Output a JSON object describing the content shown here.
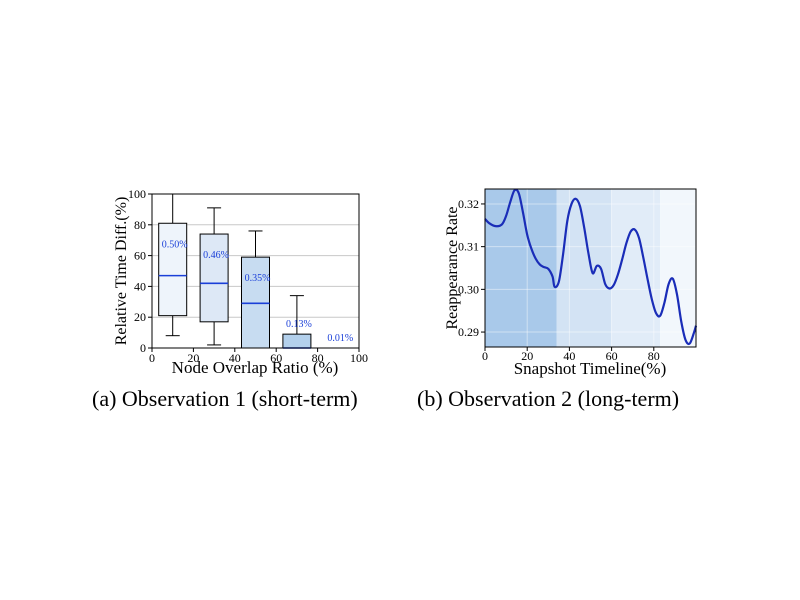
{
  "chart_data": [
    {
      "type": "box",
      "title": "",
      "xlabel": "Node Overlap Ratio (%)",
      "ylabel": "Relative Time Diff.(%)",
      "xlim": [
        0,
        100
      ],
      "ylim": [
        0,
        100
      ],
      "xticks": [
        0,
        20,
        40,
        60,
        80,
        100
      ],
      "yticks": [
        0,
        20,
        40,
        60,
        80,
        100
      ],
      "grid": "horizontal",
      "colors": {
        "median": "#1a3fd8",
        "label": "#1a3fd8",
        "edge": "#000000"
      },
      "boxes": [
        {
          "center": 10,
          "whisker_low": 8,
          "q1": 21,
          "median": 47,
          "q3": 81,
          "whisker_high": 100,
          "label": "0.50%",
          "fill": "#eef4fb"
        },
        {
          "center": 30,
          "whisker_low": 2,
          "q1": 17,
          "median": 42,
          "q3": 74,
          "whisker_high": 91,
          "label": "0.46%",
          "fill": "#dde8f6"
        },
        {
          "center": 50,
          "whisker_low": 0,
          "q1": 0,
          "median": 29,
          "q3": 59,
          "whisker_high": 76,
          "label": "0.35%",
          "fill": "#c7dcf1"
        },
        {
          "center": 70,
          "whisker_low": 0,
          "q1": 0,
          "median": 0,
          "q3": 9,
          "whisker_high": 34,
          "label": "0.13%",
          "fill": "#b3d0ec"
        },
        {
          "center": 90,
          "whisker_low": 0,
          "q1": 0,
          "median": 0,
          "q3": 0,
          "whisker_high": 0,
          "label": "0.01%",
          "fill": "#a2c5e8"
        }
      ]
    },
    {
      "type": "line",
      "title": "",
      "xlabel": "Snapshot Timeline(%)",
      "ylabel": "Reappearance Rate",
      "xlim": [
        0,
        100
      ],
      "ylim": [
        0.2865,
        0.3235
      ],
      "xticks": [
        0,
        20,
        40,
        60,
        80
      ],
      "yticks": [
        0.29,
        0.3,
        0.31,
        0.32
      ],
      "ytick_labels": [
        "0.29",
        "0.30",
        "0.31",
        "0.32"
      ],
      "line_color": "#1a2db8",
      "background_bands": [
        {
          "x0": 0,
          "x1": 34,
          "color": "#a9c9ea"
        },
        {
          "x0": 34,
          "x1": 60,
          "color": "#d3e3f4"
        },
        {
          "x0": 60,
          "x1": 83,
          "color": "#e1ecf8"
        },
        {
          "x0": 83,
          "x1": 100,
          "color": "#f2f7fc"
        }
      ],
      "series": [
        {
          "name": "Reappearance Rate",
          "x": [
            0,
            2,
            5,
            8,
            10,
            12,
            14,
            16,
            18,
            20,
            22,
            24,
            26,
            28,
            30,
            32,
            33,
            35,
            37,
            39,
            41,
            43,
            45,
            47,
            49,
            51,
            53,
            55,
            57,
            59,
            61,
            63,
            65,
            67,
            69,
            71,
            73,
            75,
            77,
            79,
            81,
            83,
            85,
            87,
            89,
            91,
            93,
            95,
            97,
            99,
            100
          ],
          "y": [
            0.3165,
            0.3155,
            0.3148,
            0.3152,
            0.3172,
            0.3205,
            0.3232,
            0.3225,
            0.318,
            0.3128,
            0.3095,
            0.3072,
            0.3058,
            0.3052,
            0.3048,
            0.303,
            0.3006,
            0.3018,
            0.3082,
            0.316,
            0.32,
            0.3212,
            0.3195,
            0.3145,
            0.3085,
            0.3038,
            0.3055,
            0.3048,
            0.3012,
            0.3002,
            0.301,
            0.3035,
            0.307,
            0.3108,
            0.3135,
            0.314,
            0.312,
            0.3075,
            0.3025,
            0.2978,
            0.2945,
            0.2938,
            0.2968,
            0.3012,
            0.3025,
            0.2988,
            0.2925,
            0.2882,
            0.2873,
            0.2898,
            0.2915
          ]
        }
      ]
    }
  ],
  "captions": {
    "a": "(a) Observation 1 (short-term)",
    "b": "(b) Observation 2 (long-term)"
  }
}
